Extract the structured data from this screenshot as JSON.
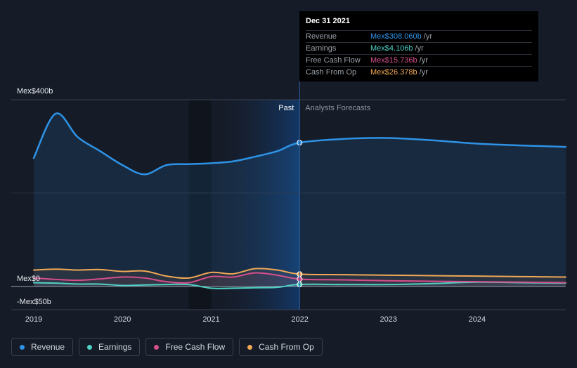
{
  "chart_data": {
    "type": "line",
    "y_unit_prefix": "Mex$",
    "y_tick_labels": [
      "Mex$400b",
      "Mex$0",
      "-Mex$50b"
    ],
    "ylim": [
      -50,
      400
    ],
    "x_tick_labels": [
      "2019",
      "2020",
      "2021",
      "2022",
      "2023",
      "2024"
    ],
    "xlim": [
      "2019-01-01",
      "2024-12-31"
    ],
    "past_label": "Past",
    "forecast_label": "Analysts Forecasts",
    "past_end": "2021-12-31",
    "grid": true,
    "series": [
      {
        "name": "Revenue",
        "color": "#2e93e6",
        "x": [
          "2019-01-01",
          "2019-04-01",
          "2019-07-01",
          "2019-10-01",
          "2020-01-01",
          "2020-04-01",
          "2020-07-01",
          "2020-10-01",
          "2021-01-01",
          "2021-04-01",
          "2021-07-01",
          "2021-10-01",
          "2021-12-31",
          "2022-06-30",
          "2022-12-31",
          "2023-06-30",
          "2023-12-31",
          "2024-06-30",
          "2024-12-31"
        ],
        "values": [
          275,
          370,
          320,
          290,
          260,
          240,
          260,
          262,
          264,
          268,
          278,
          290,
          308,
          316,
          318,
          313,
          306,
          302,
          299
        ]
      },
      {
        "name": "Earnings",
        "color": "#4fd1c5",
        "x": [
          "2019-01-01",
          "2019-04-01",
          "2019-07-01",
          "2019-10-01",
          "2020-01-01",
          "2020-04-01",
          "2020-07-01",
          "2020-10-01",
          "2021-01-01",
          "2021-04-01",
          "2021-07-01",
          "2021-10-01",
          "2021-12-31",
          "2022-06-30",
          "2022-12-31",
          "2023-06-30",
          "2023-12-31",
          "2024-06-30",
          "2024-12-31"
        ],
        "values": [
          8,
          7,
          5,
          5,
          2,
          3,
          4,
          4,
          -4,
          -4,
          -3,
          -2,
          4.106,
          4,
          4,
          6,
          9,
          8,
          7
        ]
      },
      {
        "name": "Free Cash Flow",
        "color": "#d64f8c",
        "x": [
          "2019-01-01",
          "2019-04-01",
          "2019-07-01",
          "2019-10-01",
          "2020-01-01",
          "2020-04-01",
          "2020-07-01",
          "2020-10-01",
          "2021-01-01",
          "2021-04-01",
          "2021-07-01",
          "2021-10-01",
          "2021-12-31",
          "2022-06-30",
          "2022-12-31",
          "2023-06-30",
          "2023-12-31",
          "2024-06-30",
          "2024-12-31"
        ],
        "values": [
          18,
          15,
          13,
          16,
          20,
          18,
          10,
          8,
          21,
          20,
          29,
          24,
          15.736,
          14,
          12,
          11,
          10,
          9,
          8
        ]
      },
      {
        "name": "Cash From Op",
        "color": "#f0a857",
        "x": [
          "2019-01-01",
          "2019-04-01",
          "2019-07-01",
          "2019-10-01",
          "2020-01-01",
          "2020-04-01",
          "2020-07-01",
          "2020-10-01",
          "2021-01-01",
          "2021-04-01",
          "2021-07-01",
          "2021-10-01",
          "2021-12-31",
          "2022-06-30",
          "2022-12-31",
          "2023-06-30",
          "2023-12-31",
          "2024-06-30",
          "2024-12-31"
        ],
        "values": [
          35,
          37,
          35,
          36,
          32,
          33,
          22,
          18,
          30,
          27,
          38,
          35,
          26.378,
          25,
          24,
          23,
          22,
          21,
          20
        ]
      }
    ]
  },
  "tooltip": {
    "date": "Dec 31 2021",
    "rows": [
      {
        "label": "Revenue",
        "value": "Mex$308.060b",
        "unit": "/yr",
        "color": "#2e93e6"
      },
      {
        "label": "Earnings",
        "value": "Mex$4.106b",
        "unit": "/yr",
        "color": "#4fd1c5"
      },
      {
        "label": "Free Cash Flow",
        "value": "Mex$15.736b",
        "unit": "/yr",
        "color": "#d64f8c"
      },
      {
        "label": "Cash From Op",
        "value": "Mex$26.378b",
        "unit": "/yr",
        "color": "#f0a857"
      }
    ]
  },
  "legend": [
    {
      "label": "Revenue",
      "color": "#2e93e6"
    },
    {
      "label": "Earnings",
      "color": "#4fd1c5"
    },
    {
      "label": "Free Cash Flow",
      "color": "#d64f8c"
    },
    {
      "label": "Cash From Op",
      "color": "#f0a857"
    }
  ]
}
